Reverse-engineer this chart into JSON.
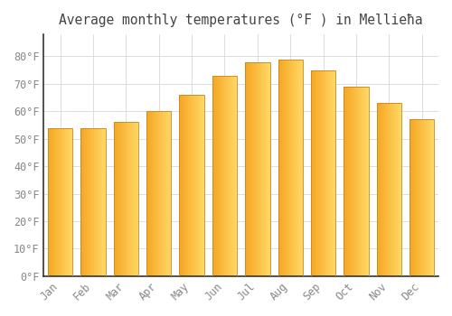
{
  "title": "Average monthly temperatures (°F ) in Mellieħa",
  "months": [
    "Jan",
    "Feb",
    "Mar",
    "Apr",
    "May",
    "Jun",
    "Jul",
    "Aug",
    "Sep",
    "Oct",
    "Nov",
    "Dec"
  ],
  "values": [
    54,
    54,
    56,
    60,
    66,
    73,
    78,
    79,
    75,
    69,
    63,
    57
  ],
  "bar_color_left": "#F5A623",
  "bar_color_right": "#FFD966",
  "bar_edge_color": "#C8861A",
  "background_color": "#FFFFFF",
  "grid_color": "#DDDDDD",
  "text_color": "#888888",
  "axis_color": "#333333",
  "ylim": [
    0,
    88
  ],
  "yticks": [
    0,
    10,
    20,
    30,
    40,
    50,
    60,
    70,
    80
  ],
  "title_fontsize": 10.5,
  "tick_fontsize": 8.5,
  "bar_width": 0.75
}
